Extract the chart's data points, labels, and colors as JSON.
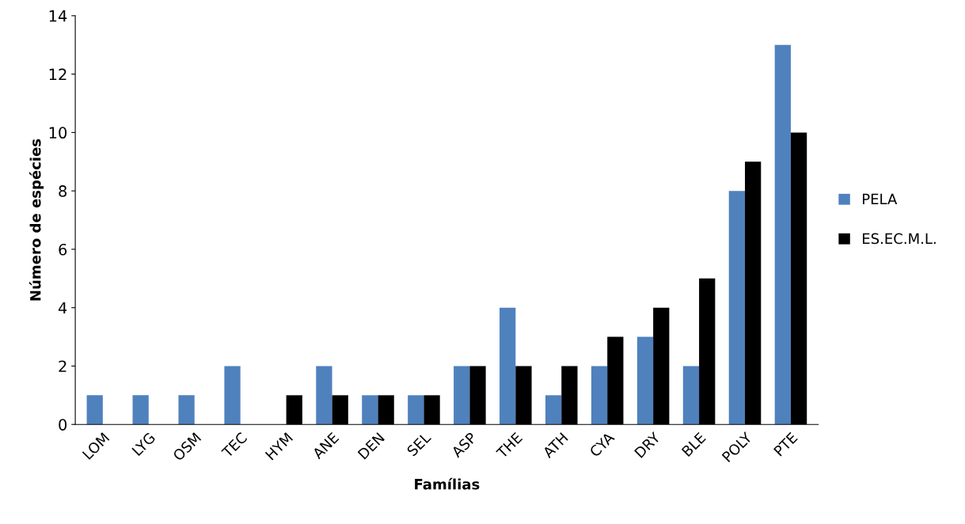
{
  "chart_data": {
    "type": "bar",
    "xlabel": "Famílias",
    "ylabel": "Número de espécies",
    "categories": [
      "LOM",
      "LYG",
      "OSM",
      "TEC",
      "HYM",
      "ANE",
      "DEN",
      "SEL",
      "ASP",
      "THE",
      "ATH",
      "CYA",
      "DRY",
      "BLE",
      "POLY",
      "PTE"
    ],
    "series": [
      {
        "name": "PELA",
        "color": "#4f81bd",
        "values": [
          1,
          1,
          1,
          2,
          0,
          2,
          1,
          1,
          2,
          4,
          1,
          2,
          3,
          2,
          8,
          13
        ]
      },
      {
        "name": "ES.EC.M.L.",
        "color": "#000000",
        "values": [
          0,
          0,
          0,
          0,
          1,
          1,
          1,
          1,
          2,
          2,
          2,
          3,
          4,
          5,
          9,
          10
        ]
      }
    ],
    "ylim": [
      0,
      14
    ],
    "yticks": [
      0,
      2,
      4,
      6,
      8,
      10,
      12,
      14
    ],
    "grid": false,
    "legend": "right"
  }
}
